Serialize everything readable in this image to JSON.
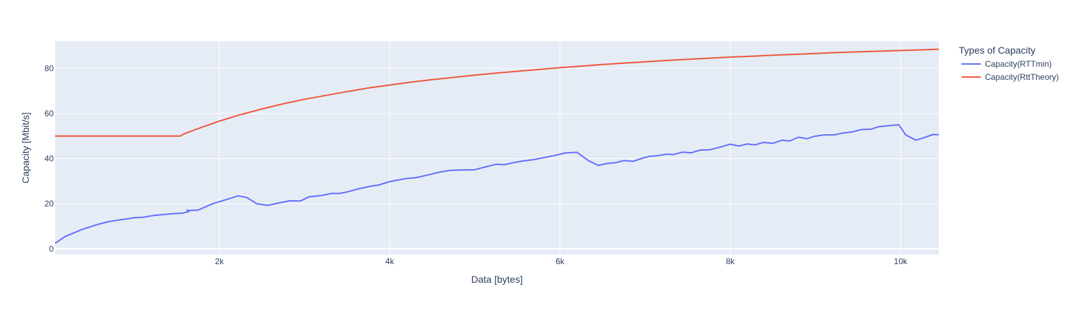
{
  "chart_data": {
    "type": "line",
    "title": "",
    "xlabel": "Data [bytes]",
    "ylabel": "Capacity [Mbit/s]",
    "xlim": [
      70,
      10450
    ],
    "ylim": [
      -2.5,
      92
    ],
    "xticks": [
      2000,
      4000,
      6000,
      8000,
      10000
    ],
    "xtick_labels": [
      "2k",
      "4k",
      "6k",
      "8k",
      "10k"
    ],
    "yticks": [
      0,
      20,
      40,
      60,
      80
    ],
    "ytick_labels": [
      "0",
      "20",
      "40",
      "60",
      "80"
    ],
    "grid": true,
    "legend": {
      "title": "Types of Capacity",
      "placement": "right"
    },
    "series": [
      {
        "name": "Capacity(RTTmin)",
        "color": "#636efa",
        "x": [
          70,
          190,
          380,
          540,
          690,
          820,
          900,
          1000,
          1100,
          1230,
          1340,
          1460,
          1540,
          1550,
          1640,
          1620,
          1640,
          1750,
          1920,
          2050,
          2220,
          2320,
          2440,
          2570,
          2680,
          2830,
          2950,
          3050,
          3200,
          3320,
          3400,
          3500,
          3620,
          3780,
          3870,
          4000,
          4200,
          4300,
          4420,
          4570,
          4710,
          4870,
          5000,
          5140,
          5250,
          5350,
          5450,
          5570,
          5700,
          5820,
          5950,
          6060,
          6200,
          6340,
          6450,
          6550,
          6650,
          6750,
          6860,
          6970,
          7050,
          7150,
          7250,
          7330,
          7440,
          7540,
          7650,
          7760,
          7870,
          8000,
          8100,
          8200,
          8290,
          8390,
          8500,
          8610,
          8700,
          8800,
          8900,
          8990,
          9100,
          9220,
          9330,
          9430,
          9540,
          9650,
          9740,
          9840,
          9980,
          10060,
          10180,
          10270,
          10380,
          10450
        ],
        "y": [
          2.5,
          5.5,
          8.5,
          10.5,
          12,
          12.8,
          13.2,
          13.8,
          14,
          14.8,
          15.2,
          15.6,
          15.8,
          15.7,
          16.5,
          17.2,
          17,
          17.2,
          20,
          21.5,
          23.5,
          22.8,
          20,
          19.3,
          20.2,
          21.3,
          21.2,
          23,
          23.7,
          24.6,
          24.5,
          25.2,
          26.5,
          27.8,
          28.3,
          29.8,
          31.2,
          31.5,
          32.5,
          33.9,
          34.8,
          35,
          35.1,
          36.5,
          37.5,
          37.3,
          38.2,
          39,
          39.6,
          40.5,
          41.5,
          42.5,
          42.8,
          39,
          37,
          37.8,
          38.2,
          39.1,
          38.8,
          40.2,
          41,
          41.3,
          42,
          41.8,
          42.9,
          42.6,
          43.8,
          43.9,
          45,
          46.4,
          45.6,
          46.5,
          46.1,
          47.2,
          46.8,
          48.2,
          47.8,
          49.5,
          48.8,
          49.9,
          50.5,
          50.5,
          51.4,
          51.8,
          52.9,
          53,
          54.1,
          54.5,
          55,
          50.5,
          48.2,
          49.2,
          50.7,
          50.6
        ]
      },
      {
        "name": "Capacity(RttTheory)",
        "color": "#ef553b",
        "x": [
          70,
          500,
          1000,
          1540,
          1600,
          1800,
          2000,
          2250,
          2500,
          2750,
          3000,
          3250,
          3500,
          3750,
          4000,
          4250,
          4500,
          4750,
          5000,
          5250,
          5500,
          5750,
          6000,
          6250,
          6500,
          6750,
          7000,
          7250,
          7500,
          7750,
          8000,
          8250,
          8500,
          8750,
          9000,
          9250,
          9500,
          9750,
          10000,
          10250,
          10450
        ],
        "y": [
          50,
          50,
          50,
          50,
          51.2,
          54,
          56.6,
          59.5,
          62,
          64.3,
          66.3,
          68,
          69.7,
          71.3,
          72.6,
          73.9,
          75,
          76,
          77,
          77.9,
          78.7,
          79.5,
          80.3,
          81,
          81.7,
          82.3,
          82.9,
          83.5,
          84,
          84.5,
          85,
          85.4,
          85.8,
          86.2,
          86.6,
          87,
          87.3,
          87.6,
          87.9,
          88.2,
          88.5
        ]
      }
    ]
  }
}
